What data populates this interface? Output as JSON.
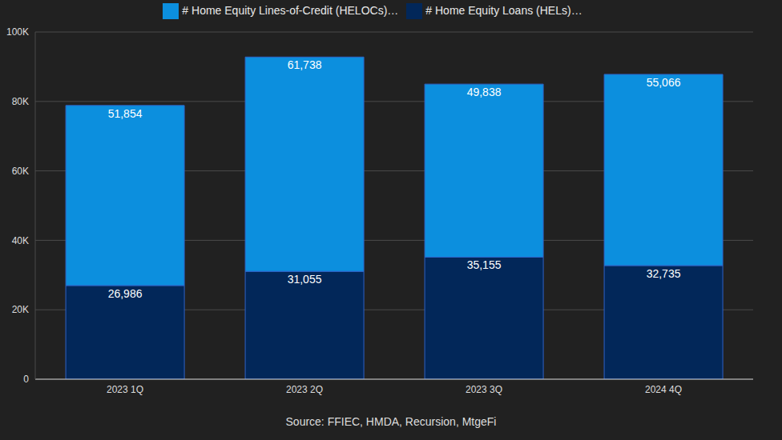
{
  "chart_data": {
    "type": "bar",
    "stacked": true,
    "data_labels": true,
    "grid": true,
    "legend": "top",
    "source": "Source: FFIEC, HMDA, Recursion, MtgeFi",
    "categories": [
      "2023 1Q",
      "2023 2Q",
      "2023 3Q",
      "2024 4Q"
    ],
    "series": [
      {
        "name": "# Home Equity Loans (HELs)…",
        "color": "#022759",
        "values": [
          26986,
          31055,
          35155,
          32735
        ],
        "value_labels": [
          "26,986",
          "31,055",
          "35,155",
          "32,735"
        ]
      },
      {
        "name": "# Home Equity Lines-of-Credit (HELOCs)…",
        "color": "#0c8fde",
        "values": [
          51854,
          61738,
          49838,
          55066
        ],
        "value_labels": [
          "51,854",
          "61,738",
          "49,838",
          "55,066"
        ]
      }
    ],
    "ylim": [
      0,
      100000
    ],
    "yticks": [
      0,
      {
        "value": 20000,
        "label": "20K"
      },
      {
        "value": 40000,
        "label": "40K"
      },
      {
        "value": 60000,
        "label": "60K"
      },
      {
        "value": 80000,
        "label": "80K"
      },
      {
        "value": 100000,
        "label": "100K"
      }
    ]
  }
}
